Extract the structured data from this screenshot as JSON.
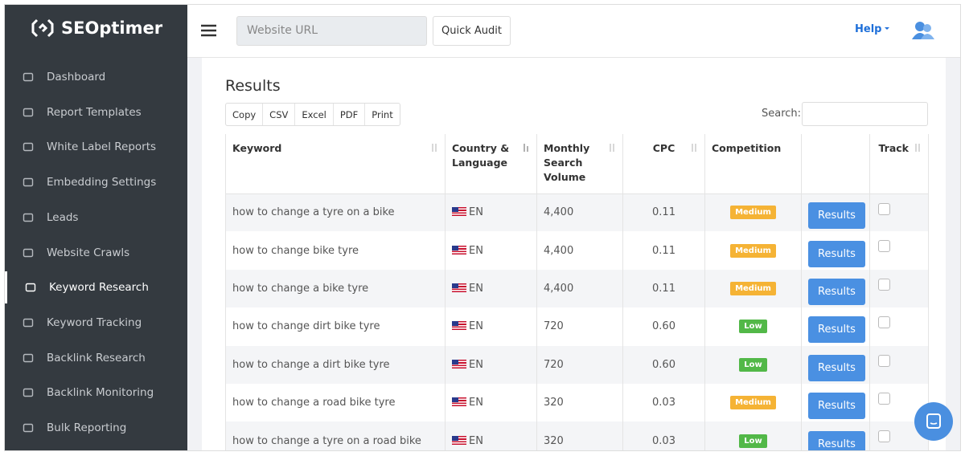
{
  "brand": "SEOptimer",
  "sidebar": {
    "items": [
      "Dashboard",
      "Report Templates",
      "White Label Reports",
      "Embedding Settings",
      "Leads",
      "Website Crawls",
      "Keyword Research",
      "Keyword Tracking",
      "Backlink Research",
      "Backlink Monitoring",
      "Bulk Reporting"
    ]
  },
  "topbar": {
    "url_placeholder": "Website URL",
    "audit_button": "Quick Audit",
    "help": "Help"
  },
  "results": {
    "title": "Results",
    "export_buttons": [
      "Copy",
      "CSV",
      "Excel",
      "PDF",
      "Print"
    ],
    "search_label": "Search:",
    "columns": {
      "keyword": "Keyword",
      "country": "Country & Language",
      "volume": "Monthly Search Volume",
      "cpc": "CPC",
      "competition": "Competition",
      "track": "Track"
    },
    "rows": [
      {
        "keyword": "how to change a tyre on a bike",
        "language": "EN",
        "volume": "4,400",
        "cpc": "0.11",
        "competition": "Medium",
        "action": "Results"
      },
      {
        "keyword": "how to change bike tyre",
        "language": "EN",
        "volume": "4,400",
        "cpc": "0.11",
        "competition": "Medium",
        "action": "Results"
      },
      {
        "keyword": "how to change a bike tyre",
        "language": "EN",
        "volume": "4,400",
        "cpc": "0.11",
        "competition": "Medium",
        "action": "Results"
      },
      {
        "keyword": "how to change dirt bike tyre",
        "language": "EN",
        "volume": "720",
        "cpc": "0.60",
        "competition": "Low",
        "action": "Results"
      },
      {
        "keyword": "how to change a dirt bike tyre",
        "language": "EN",
        "volume": "720",
        "cpc": "0.60",
        "competition": "Low",
        "action": "Results"
      },
      {
        "keyword": "how to change a road bike tyre",
        "language": "EN",
        "volume": "320",
        "cpc": "0.03",
        "competition": "Medium",
        "action": "Results"
      },
      {
        "keyword": "how to change a tyre on a road bike",
        "language": "EN",
        "volume": "320",
        "cpc": "0.03",
        "competition": "Low",
        "action": "Results"
      }
    ]
  }
}
